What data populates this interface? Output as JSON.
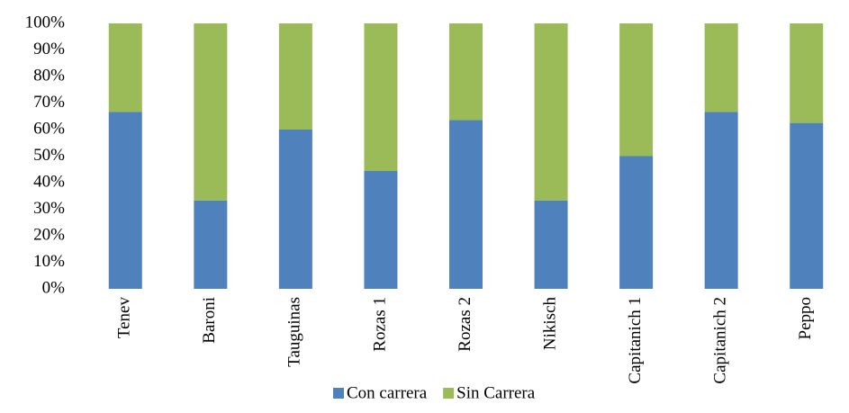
{
  "chart_data": {
    "type": "stacked_bar_100",
    "categories": [
      "Tenev",
      "Baroni",
      "Tauguinas",
      "Rozas 1",
      "Rozas 2",
      "Nikisch",
      "Capitanich 1",
      "Capitanich 2",
      "Peppo"
    ],
    "series": [
      {
        "name": "Con carrera",
        "color": "#4f81bd",
        "values": [
          66.7,
          33.3,
          60,
          44.4,
          63.6,
          33.3,
          50,
          66.7,
          62.5
        ]
      },
      {
        "name": "Sin Carrera",
        "color": "#9bbb59",
        "values": [
          33.3,
          66.7,
          40,
          55.6,
          36.4,
          66.7,
          50,
          33.3,
          37.5
        ]
      }
    ],
    "ylim": [
      0,
      100
    ],
    "yticks": [
      {
        "value": 0,
        "label": "0%"
      },
      {
        "value": 10,
        "label": "10%"
      },
      {
        "value": 20,
        "label": "20%"
      },
      {
        "value": 30,
        "label": "30%"
      },
      {
        "value": 40,
        "label": "40%"
      },
      {
        "value": 50,
        "label": "50%"
      },
      {
        "value": 60,
        "label": "60%"
      },
      {
        "value": 70,
        "label": "70%"
      },
      {
        "value": 80,
        "label": "80%"
      },
      {
        "value": 90,
        "label": "90%"
      },
      {
        "value": 100,
        "label": "100%"
      }
    ],
    "legend": "bottom"
  }
}
